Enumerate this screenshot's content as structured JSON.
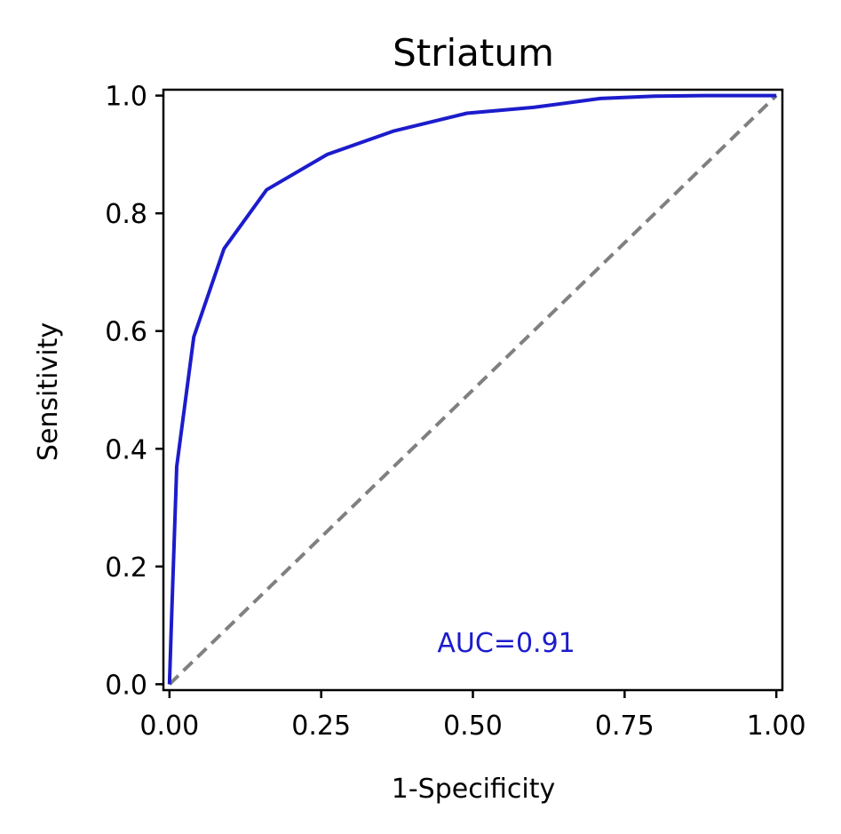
{
  "chart_data": {
    "type": "line",
    "title": "Striatum",
    "xlabel": "1-Specificity",
    "ylabel": "Sensitivity",
    "xlim": [
      -0.01,
      1.01
    ],
    "ylim": [
      -0.01,
      1.01
    ],
    "x_ticks": [
      0.0,
      0.25,
      0.5,
      0.75,
      1.0
    ],
    "x_tick_labels": [
      "0.00",
      "0.25",
      "0.50",
      "0.75",
      "1.00"
    ],
    "y_ticks": [
      0.0,
      0.2,
      0.4,
      0.6,
      0.8,
      1.0
    ],
    "y_tick_labels": [
      "0.0",
      "0.2",
      "0.4",
      "0.6",
      "0.8",
      "1.0"
    ],
    "grid": false,
    "series": [
      {
        "color": "#1c1ccc",
        "style": "solid",
        "x": [
          0.0,
          0.004,
          0.012,
          0.04,
          0.09,
          0.16,
          0.26,
          0.37,
          0.49,
          0.6,
          0.71,
          0.8,
          0.88,
          1.0
        ],
        "y": [
          0.0,
          0.13,
          0.37,
          0.59,
          0.74,
          0.84,
          0.9,
          0.94,
          0.97,
          0.98,
          0.995,
          0.999,
          1.0,
          1.0
        ]
      },
      {
        "color": "#808080",
        "style": "dashed",
        "x": [
          0.0,
          1.0
        ],
        "y": [
          0.0,
          1.0
        ]
      }
    ],
    "annotations": [
      {
        "text": "AUC=0.91",
        "x": 0.555,
        "y": 0.07,
        "color": "#1c1ccc"
      }
    ]
  }
}
